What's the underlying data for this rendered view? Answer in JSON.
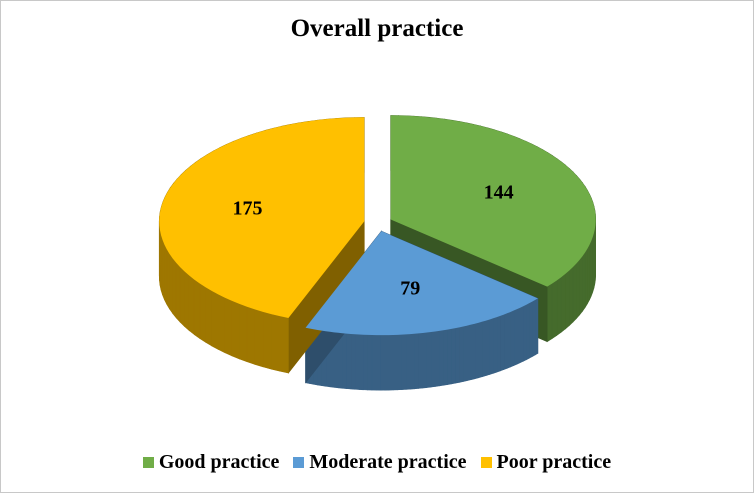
{
  "chart_data": {
    "type": "pie",
    "title": "Overall practice",
    "categories": [
      "Good practice",
      "Moderate practice",
      "Poor practice"
    ],
    "values": [
      144,
      79,
      175
    ],
    "colors": [
      "#70ad47",
      "#5b9bd5",
      "#ffc000"
    ],
    "legend": "bottom"
  }
}
